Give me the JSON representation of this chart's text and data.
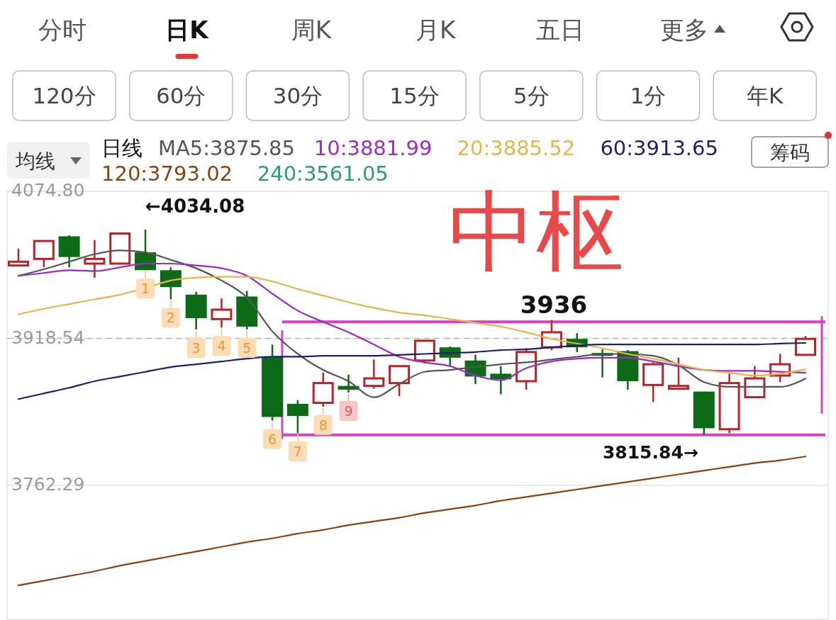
{
  "chart_data": [
    {
      "type": "other",
      "annotations": [
        "分时",
        "日K",
        "周K",
        "月K",
        "五日",
        "更多"
      ]
    },
    {
      "type": "other",
      "annotations": [
        "120分",
        "60分",
        "30分",
        "15分",
        "5分",
        "1分",
        "年K"
      ]
    },
    {
      "type": "other",
      "annotations": [
        "均线",
        "筹码"
      ]
    },
    {
      "type": "candlestick",
      "title": "中枢",
      "categories": [
        null,
        null,
        null,
        null,
        null,
        null,
        null,
        null,
        null,
        null,
        null,
        null,
        null,
        null,
        null,
        null,
        null,
        null,
        null,
        null,
        null,
        null,
        null,
        null,
        null,
        null,
        null,
        null,
        null,
        null,
        null,
        null
      ],
      "ohlc": [
        [
          3996,
          4014,
          3995,
          4000
        ],
        [
          4003,
          4022,
          3994,
          4022
        ],
        [
          4027,
          4028,
          3994,
          4005
        ],
        [
          3998,
          4023,
          3983,
          4003
        ],
        [
          3998,
          4030,
          3998,
          4030
        ],
        [
          4010,
          4034.08,
          3991,
          3991
        ],
        [
          3991,
          3994,
          3960,
          3973
        ],
        [
          3965,
          3968,
          3928,
          3940
        ],
        [
          3939,
          3961,
          3930,
          3949
        ],
        [
          3963,
          3969,
          3928,
          3931
        ],
        [
          3899,
          3912,
          3831,
          3835
        ],
        [
          3849,
          3853,
          3818,
          3836
        ],
        [
          3850,
          3882,
          3846,
          3871
        ],
        [
          3868,
          3880,
          3861,
          3864
        ],
        [
          3868,
          3896,
          3865,
          3876
        ],
        [
          3871,
          3890,
          3857,
          3889
        ],
        [
          3895,
          3916,
          3892,
          3916
        ],
        [
          3909,
          3910,
          3889,
          3898
        ],
        [
          3895,
          3901,
          3870,
          3878
        ],
        [
          3881,
          3889,
          3859,
          3875
        ],
        [
          3873,
          3908,
          3864,
          3904
        ],
        [
          3909,
          3938,
          3906,
          3925
        ],
        [
          3918,
          3924,
          3904,
          3909
        ],
        [
          3903,
          3907,
          3877,
          3900
        ],
        [
          3905,
          3906,
          3864,
          3873
        ],
        [
          3869,
          3893,
          3851,
          3891
        ],
        [
          3865,
          3898,
          3865,
          3868
        ],
        [
          3862,
          3862,
          3815.84,
          3823
        ],
        [
          3822,
          3881,
          3818,
          3871
        ],
        [
          3856,
          3889,
          3856,
          3876
        ],
        [
          3879,
          3902,
          3872,
          3891
        ],
        [
          3901,
          3921,
          3901,
          3918
        ]
      ],
      "colors": [
        "#b8232a",
        "#b8232a",
        "#0d6b17",
        "#b8232a",
        "#b8232a",
        "#0d6b17",
        "#0d6b17",
        "#0d6b17",
        "#b8232a",
        "#0d6b17",
        "#0d6b17",
        "#0d6b17",
        "#b8232a",
        "#0d6b17",
        "#b8232a",
        "#b8232a",
        "#b8232a",
        "#0d6b17",
        "#0d6b17",
        "#0d6b17",
        "#b8232a",
        "#b8232a",
        "#0d6b17",
        "#0d6b17",
        "#0d6b17",
        "#b8232a",
        "#b8232a",
        "#0d6b17",
        "#b8232a",
        "#b8232a",
        "#b8232a",
        "#b8232a"
      ],
      "value_labels": [
        null,
        null,
        null,
        null,
        null,
        "1",
        "2",
        "3",
        "4",
        "5",
        "6",
        "7",
        "8",
        "9",
        null,
        null,
        null,
        null,
        null,
        null,
        null,
        null,
        null,
        null,
        null,
        null,
        null,
        null,
        null,
        null,
        null,
        null
      ],
      "series": [
        {
          "type": "line",
          "name": "MA5:3875.85",
          "color": "#555555",
          "values": [
            3985,
            3992,
            4000,
            4008,
            4012,
            4010,
            4002,
            3993,
            3980,
            3962,
            3926,
            3902,
            3885,
            3873,
            3856,
            3870,
            3883,
            3885,
            3888,
            3891,
            3893,
            3896,
            3899,
            3902,
            3902,
            3900,
            3890,
            3872,
            3867,
            3867,
            3867,
            3875.85
          ]
        },
        {
          "type": "line",
          "name": "10:3881.99",
          "color": "#9a2bc8",
          "values": [
            3985,
            3988,
            3991,
            3990,
            3994,
            3998,
            3998,
            3996,
            3993,
            3985,
            3966,
            3948,
            3936,
            3925,
            3912,
            3899,
            3893,
            3889,
            3879,
            3874,
            3887,
            3894,
            3897,
            3898,
            3898,
            3894,
            3889,
            3885,
            3884,
            3884,
            3883,
            3881.99
          ]
        },
        {
          "type": "line",
          "name": "20:3885.52",
          "color": "#e6b54a",
          "values": [
            3944,
            3950,
            3955,
            3960,
            3965,
            3972,
            3980,
            3983,
            3984,
            3984,
            3979,
            3971,
            3964,
            3957,
            3951,
            3946,
            3943,
            3939,
            3935,
            3931,
            3925,
            3918,
            3913,
            3908,
            3902,
            3897,
            3891,
            3885,
            3882,
            3879,
            3881,
            3885.52
          ]
        },
        {
          "type": "line",
          "name": "60:3913.65",
          "color": "#1b1f6e",
          "values": [
            3854,
            3860,
            3866,
            3873,
            3878,
            3883,
            3888,
            3891,
            3894,
            3897,
            3899,
            3899,
            3900,
            3900,
            3900,
            3901,
            3902,
            3903,
            3904,
            3906,
            3907,
            3909,
            3911,
            3912,
            3912,
            3912,
            3912,
            3912,
            3912,
            3912,
            3913,
            3913.65
          ]
        },
        {
          "type": "line",
          "name": "120:3793.02",
          "color": "#8a4213",
          "values": [
            3656,
            3661,
            3666,
            3671,
            3677,
            3682,
            3687,
            3692,
            3697,
            3702,
            3706,
            3711,
            3715,
            3720,
            3724,
            3728,
            3733,
            3737,
            3741,
            3746,
            3750,
            3754,
            3758,
            3762,
            3766,
            3770,
            3774,
            3778,
            3782,
            3786,
            3789,
            3793.02
          ]
        },
        {
          "type": "line",
          "name": "240:3561.05",
          "color": "#2f9a7c",
          "values": [
            null,
            null,
            null,
            null,
            null,
            null,
            null,
            null,
            null,
            null,
            null,
            null,
            null,
            null,
            null,
            null,
            null,
            null,
            null,
            null,
            null,
            null,
            null,
            null,
            null,
            null,
            null,
            null,
            null,
            null,
            null,
            null
          ]
        }
      ],
      "legend_title": "日线",
      "legend": "top left",
      "ylim": [
        3620,
        4074.8
      ],
      "yticks": [
        {
          "value": 4074.8,
          "label": "4074.80"
        },
        3918.54,
        3762.29
      ],
      "grid": "y",
      "tick_labels": "y",
      "ref_lines": [
        {
          "axis": "y",
          "value": 3918.54,
          "line_style": "dashed",
          "color": "#b8b8b8"
        },
        {
          "axis": "y",
          "value": 3936,
          "label": "3936",
          "color": "#d93fc9"
        },
        {
          "axis": "y",
          "value": 3816,
          "color": "#d93fc9"
        }
      ],
      "annotations": [
        "←4034.08",
        "3815.84→"
      ]
    }
  ]
}
